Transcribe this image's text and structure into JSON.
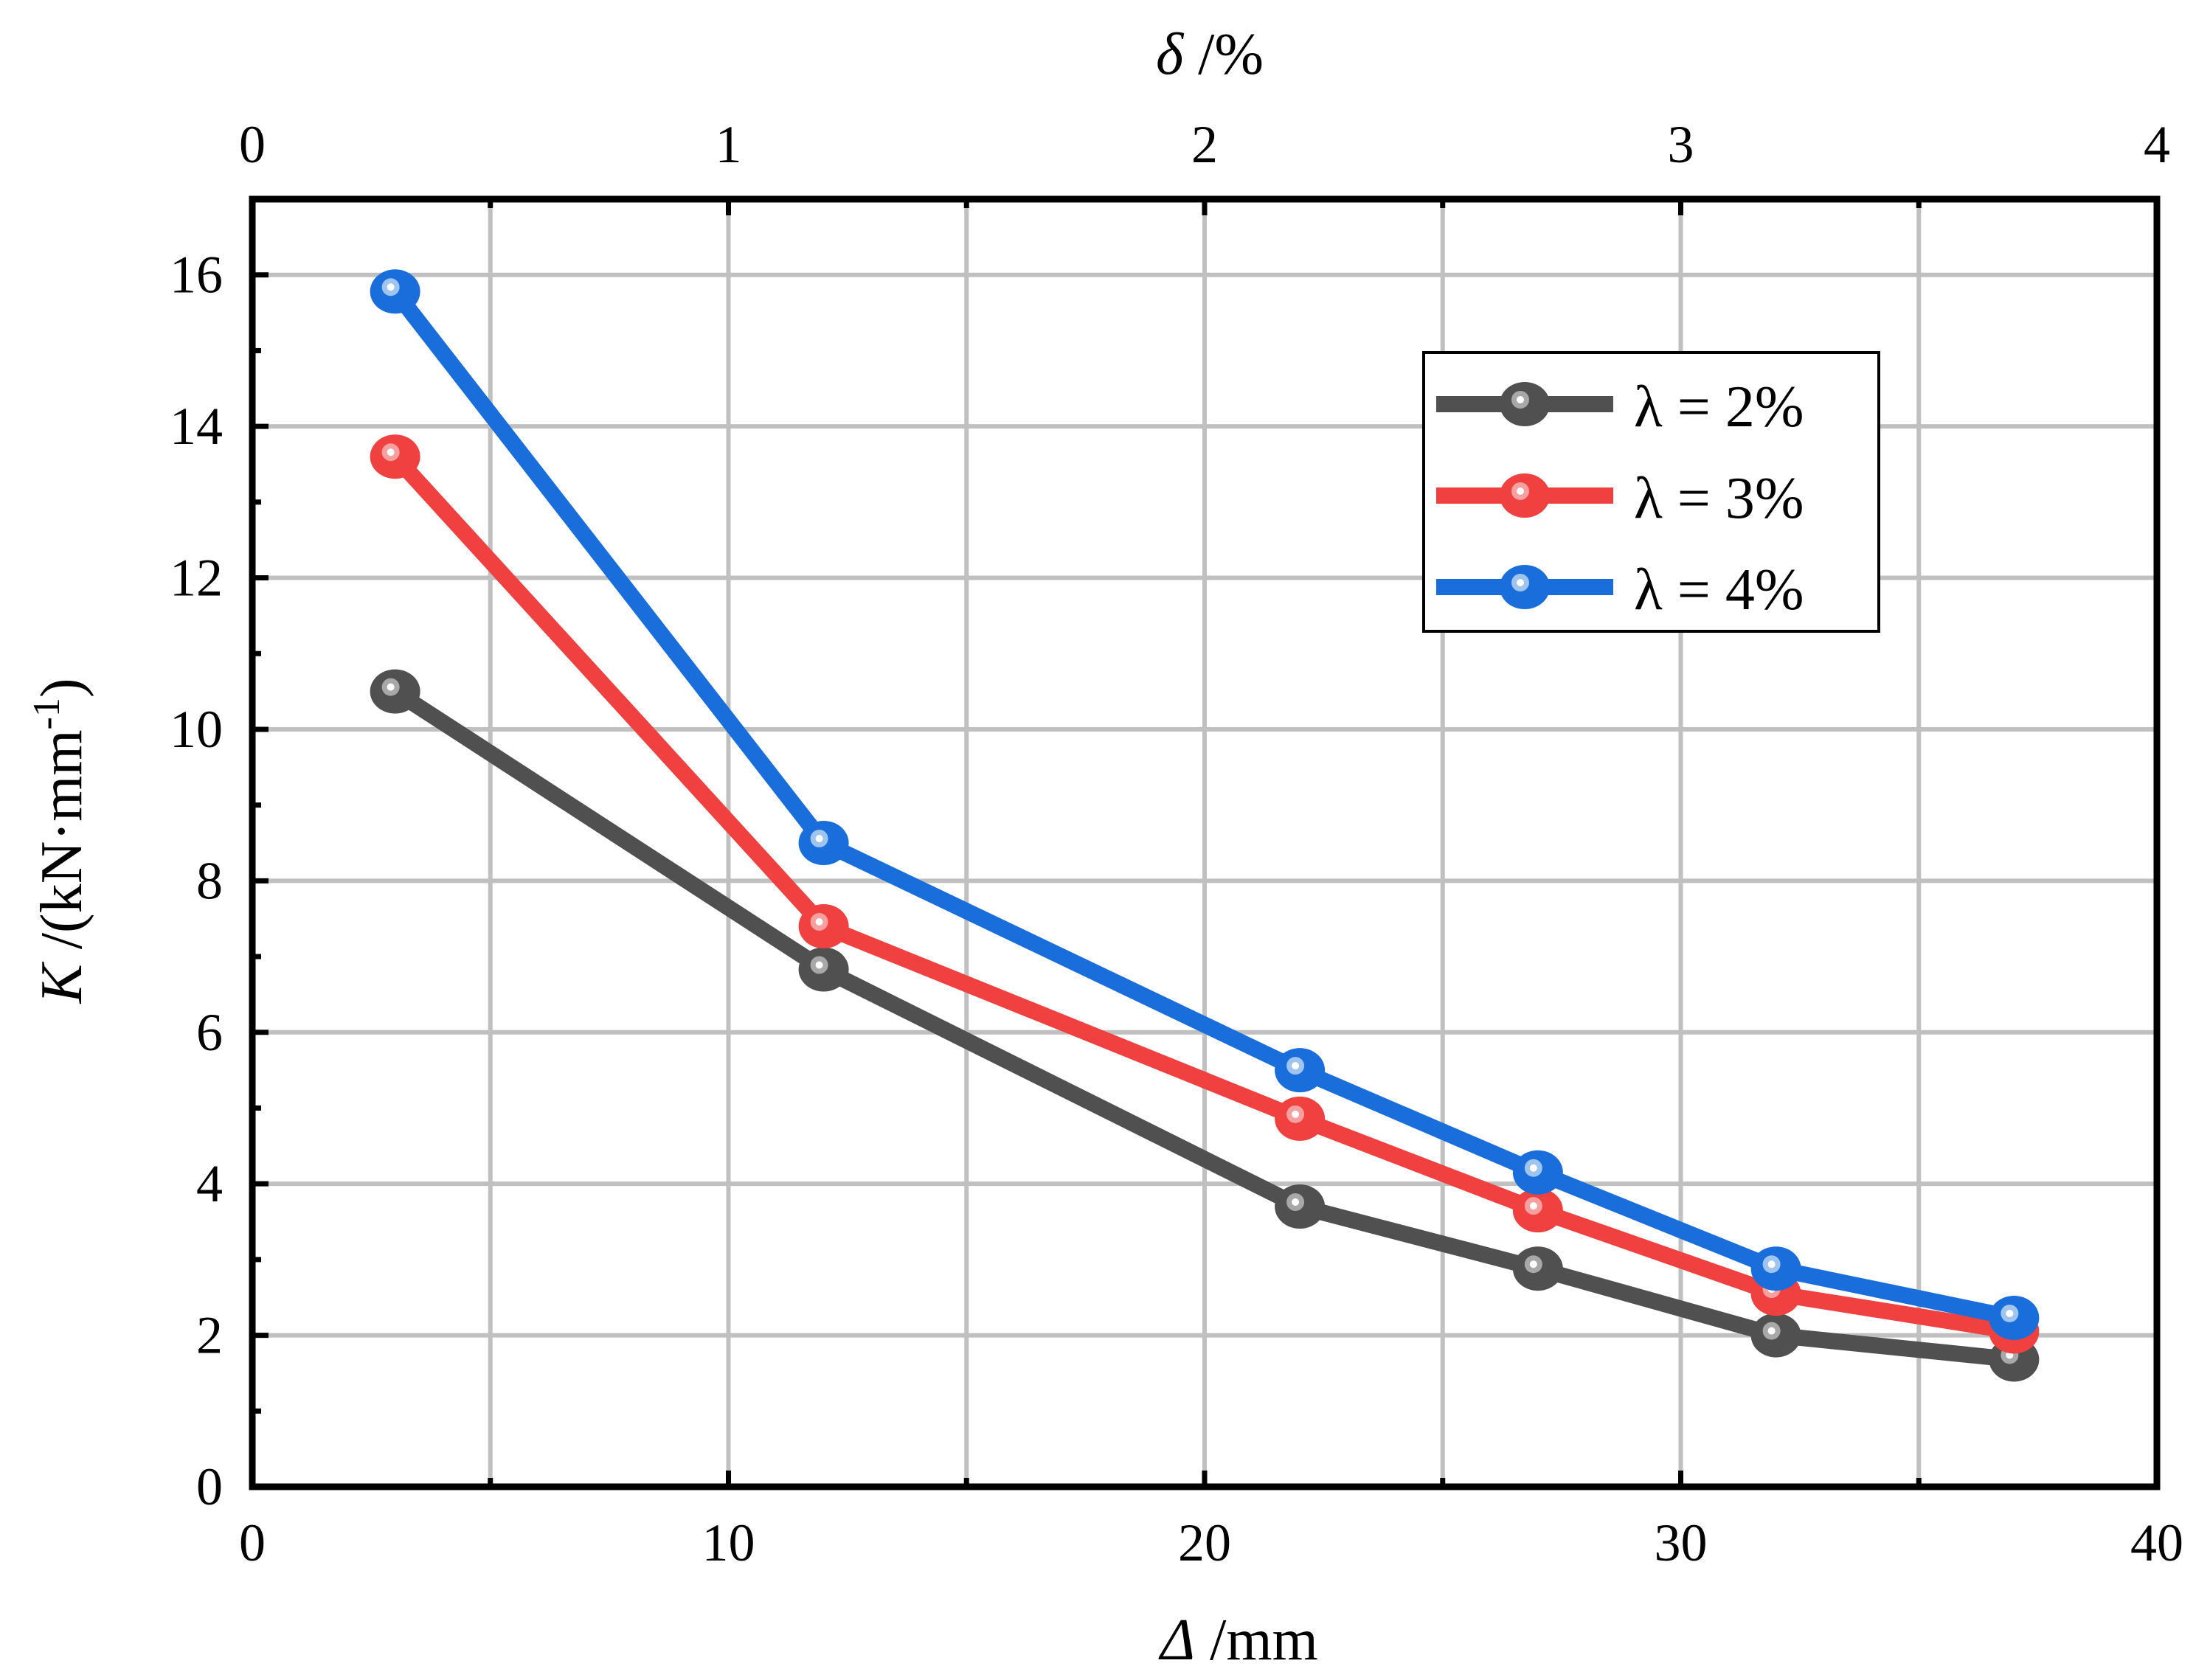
{
  "chart_data": {
    "type": "line",
    "title": "",
    "xlabel": "Δ /mm",
    "xlabel_symbol": "Δ",
    "xlabel_unit": " /mm",
    "x2label": "δ /%",
    "x2label_symbol": "δ",
    "x2label_unit": " /%",
    "ylabel": "K /(kN·mm-1)",
    "ylabel_symbol": "K",
    "ylabel_unit": " /(kN·mm",
    "ylabel_sup": "-1",
    "ylabel_close": ")",
    "xlim": [
      0,
      40
    ],
    "x2lim": [
      0,
      4
    ],
    "ylim": [
      0,
      17
    ],
    "xticks": [
      0,
      10,
      20,
      30,
      40
    ],
    "x2ticks": [
      0,
      1,
      2,
      3,
      4
    ],
    "yticks": [
      0,
      2,
      4,
      6,
      8,
      10,
      12,
      14,
      16
    ],
    "grid": true,
    "legend_position": "top-right",
    "x": [
      3,
      12,
      22,
      27,
      32,
      37
    ],
    "series": [
      {
        "name": "λ = 2%",
        "color": "#505050",
        "highlight": "#a8a8a8",
        "values": [
          10.5,
          6.83,
          3.7,
          2.88,
          2.0,
          1.68
        ]
      },
      {
        "name": "λ = 3%",
        "color": "#f04040",
        "highlight": "#f8a0a0",
        "values": [
          13.6,
          7.4,
          4.86,
          3.65,
          2.55,
          2.05
        ]
      },
      {
        "name": "λ = 4%",
        "color": "#1a6edc",
        "highlight": "#a0c4f0",
        "values": [
          15.78,
          8.5,
          5.5,
          4.15,
          2.88,
          2.23
        ]
      }
    ]
  }
}
